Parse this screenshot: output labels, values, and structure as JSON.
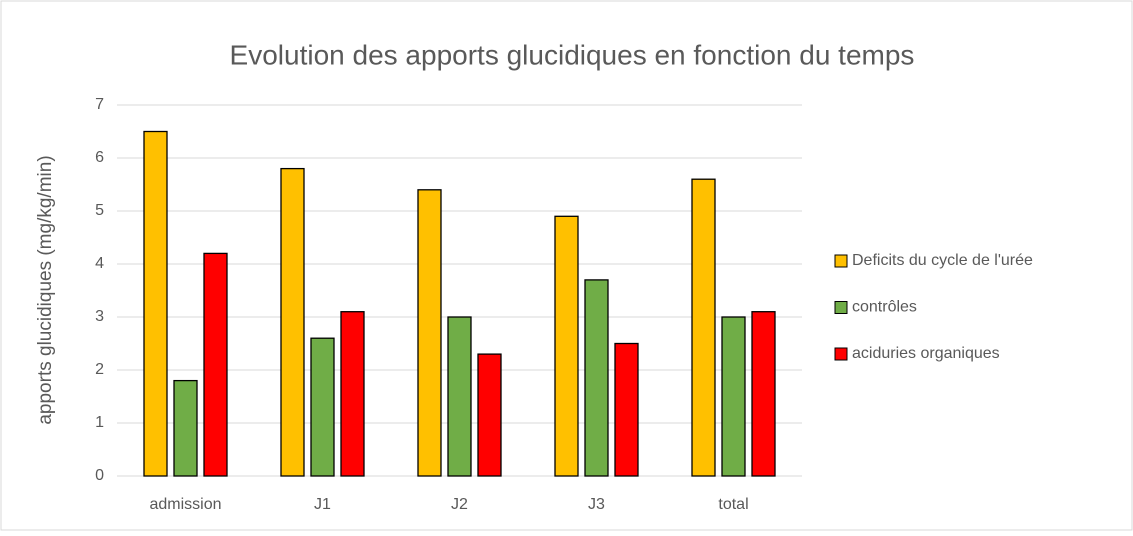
{
  "chart_data": {
    "type": "bar",
    "title": "Evolution des apports glucidiques en fonction du temps",
    "y_label": "apports glucidiques (mg/kg/min)",
    "categories": [
      "admission",
      "J1",
      "J2",
      "J3",
      "total"
    ],
    "series": [
      {
        "name": "Deficits du cycle de l'urée",
        "color": "#ffc000",
        "values": [
          6.5,
          5.8,
          5.4,
          4.9,
          5.6
        ]
      },
      {
        "name": "contrôles",
        "color": "#70ad47",
        "values": [
          1.8,
          2.6,
          3.0,
          3.7,
          3.0
        ]
      },
      {
        "name": "aciduries organiques",
        "color": "#ff0000",
        "values": [
          4.2,
          3.1,
          2.3,
          2.5,
          3.1
        ]
      }
    ],
    "ylim": [
      0,
      7
    ],
    "yticks": [
      0,
      1,
      2,
      3,
      4,
      5,
      6,
      7
    ],
    "grid": true,
    "legend": "right"
  }
}
